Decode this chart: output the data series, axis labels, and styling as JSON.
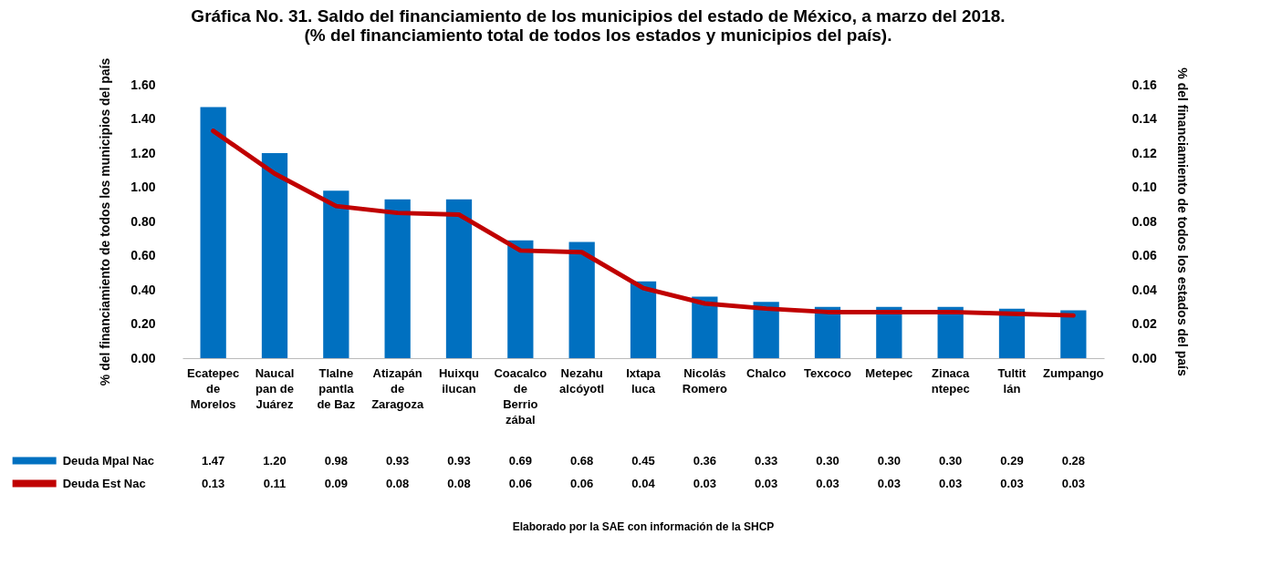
{
  "chart_data": {
    "type": "bar",
    "title": "Gráfica No. 31. Saldo del financiamiento de los municipios del estado de México, a marzo del 2018.\n(% del financiamiento total de todos los estados y municipios del país).",
    "ylabel": "% del financiamiento  de todos los municipios del país",
    "y2label": "% del financiamiento de todos los estados del país",
    "categories": [
      "Ecatepec de Morelos",
      "Naucalpan de Juárez",
      "Tlalnepantla de Baz",
      "Atizapán de Zaragoza",
      "Huixquilucan",
      "Coacalco de Berriozábal",
      "Nezahualcóyotl",
      "Ixtapaluca",
      "Nicolás Romero",
      "Chalco",
      "Texcoco",
      "Metepec",
      "Zinacantepec",
      "Tultitlán",
      "Zumpango"
    ],
    "series": [
      {
        "name": "Deuda Mpal Nac",
        "type": "bar",
        "color": "#0070c0",
        "values": [
          1.47,
          1.2,
          0.98,
          0.93,
          0.93,
          0.69,
          0.68,
          0.45,
          0.36,
          0.33,
          0.3,
          0.3,
          0.3,
          0.29,
          0.28
        ],
        "value_labels": [
          "1.47",
          "1.20",
          "0.98",
          "0.93",
          "0.93",
          "0.69",
          "0.68",
          "0.45",
          "0.36",
          "0.33",
          "0.30",
          "0.30",
          "0.30",
          "0.29",
          "0.28"
        ]
      },
      {
        "name": "Deuda Est Nac",
        "type": "line",
        "axis": "y2",
        "color": "#c00000",
        "values": [
          0.133,
          0.108,
          0.089,
          0.085,
          0.084,
          0.063,
          0.062,
          0.041,
          0.032,
          0.029,
          0.027,
          0.027,
          0.027,
          0.026,
          0.025
        ],
        "value_labels": [
          "0.13",
          "0.11",
          "0.09",
          "0.08",
          "0.08",
          "0.06",
          "0.06",
          "0.04",
          "0.03",
          "0.03",
          "0.03",
          "0.03",
          "0.03",
          "0.03",
          "0.03"
        ]
      }
    ],
    "ylim": [
      0,
      1.6
    ],
    "yticks": [
      {
        "value": 0,
        "label": "0.00"
      },
      {
        "value": 0.2,
        "label": "0.20"
      },
      {
        "value": 0.4,
        "label": "0.40"
      },
      {
        "value": 0.6,
        "label": "0.60"
      },
      {
        "value": 0.8,
        "label": "0.80"
      },
      {
        "value": 1,
        "label": "1.00"
      },
      {
        "value": 1.2,
        "label": "1.20"
      },
      {
        "value": 1.4,
        "label": "1.40"
      },
      {
        "value": 1.6,
        "label": "1.60"
      }
    ],
    "y2lim": [
      0,
      0.16
    ],
    "y2ticks": [
      {
        "value": 0,
        "label": "0.00"
      },
      {
        "value": 0.02,
        "label": "0.02"
      },
      {
        "value": 0.04,
        "label": "0.04"
      },
      {
        "value": 0.06,
        "label": "0.06"
      },
      {
        "value": 0.08,
        "label": "0.08"
      },
      {
        "value": 0.1,
        "label": "0.10"
      },
      {
        "value": 0.12,
        "label": "0.12"
      },
      {
        "value": 0.14,
        "label": "0.14"
      },
      {
        "value": 0.16,
        "label": "0.16"
      }
    ],
    "grid": false,
    "legend": "bottom left",
    "marker": "none",
    "line_style": "solid",
    "annotations": [
      "Elaborado por la SAE con información de  la SHCP"
    ]
  }
}
